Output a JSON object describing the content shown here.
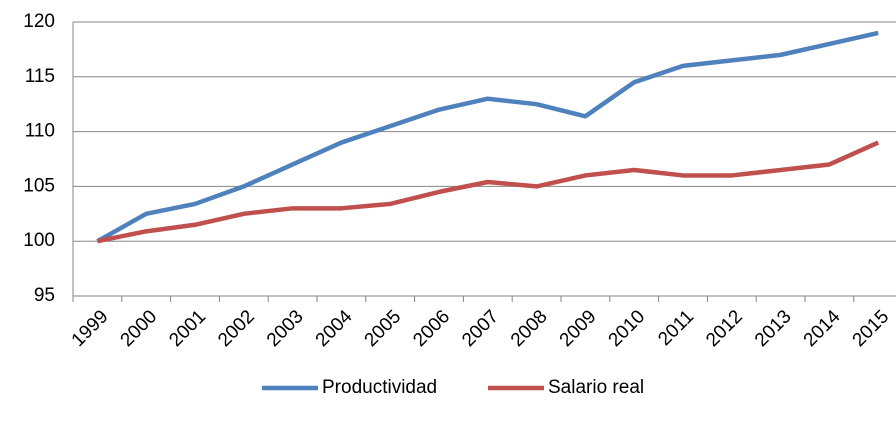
{
  "chart_data": {
    "type": "line",
    "categories": [
      "1999",
      "2000",
      "2001",
      "2002",
      "2003",
      "2004",
      "2005",
      "2006",
      "2007",
      "2008",
      "2009",
      "2010",
      "2011",
      "2012",
      "2013",
      "2014",
      "2015"
    ],
    "series": [
      {
        "name": "Productividad",
        "color": "#4f81bd",
        "values": [
          100,
          102.5,
          103.4,
          105,
          107,
          109,
          110.5,
          112,
          113,
          112.5,
          111.4,
          114.5,
          116,
          116.5,
          117,
          118,
          119
        ]
      },
      {
        "name": "Salario real",
        "color": "#c0504d",
        "values": [
          100,
          100.9,
          101.5,
          102.5,
          103,
          103,
          103.4,
          104.5,
          105.4,
          105,
          106,
          106.5,
          106,
          106,
          106.5,
          107,
          109
        ]
      }
    ],
    "ylim": [
      95,
      120
    ],
    "yticks": [
      95,
      100,
      105,
      110,
      115,
      120
    ],
    "grid": true,
    "legend": "bottom"
  }
}
